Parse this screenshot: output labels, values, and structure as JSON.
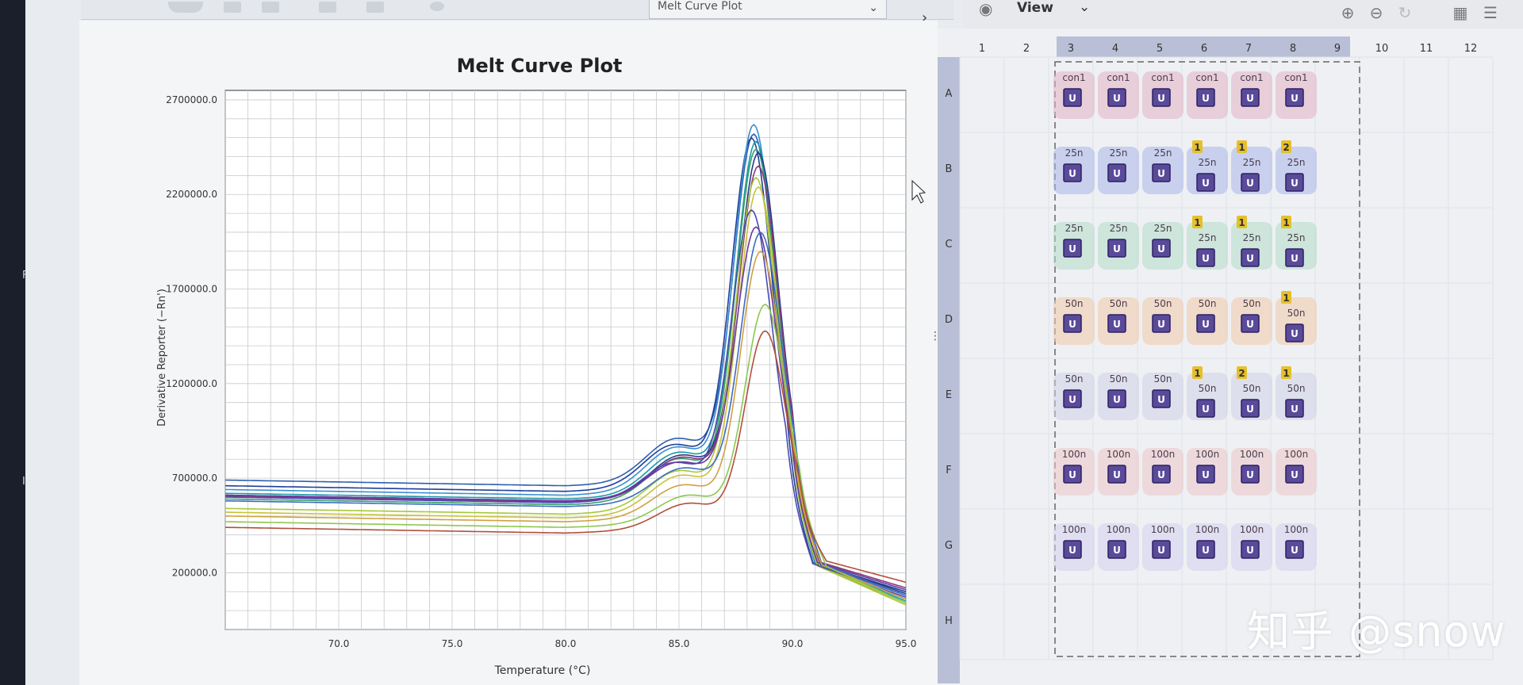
{
  "toolbar": {
    "plot_select_value": "Melt Curve Plot",
    "view_label": "View"
  },
  "chart_data": {
    "type": "line",
    "title": "Melt Curve Plot",
    "xlabel": "Temperature (°C)",
    "ylabel": "Derivative Reporter (−Rn')",
    "xlim": [
      65.0,
      95.0
    ],
    "ylim": [
      -100000,
      2750000
    ],
    "x_ticks": [
      "70.0",
      "75.0",
      "80.0",
      "85.0",
      "90.0",
      "95.0"
    ],
    "y_ticks": [
      "2700000.0",
      "2200000.0",
      "1700000.0",
      "1200000.0",
      "700000.0",
      "200000.0"
    ],
    "grid": true,
    "series": [
      {
        "color": "#2f5fb0",
        "baseline": 690000,
        "peak": 2500000,
        "peak_x": 88.3,
        "end": 80000
      },
      {
        "color": "#1f3f9a",
        "baseline": 660000,
        "peak": 2480000,
        "peak_x": 88.2,
        "end": 100000
      },
      {
        "color": "#3b8fd0",
        "baseline": 640000,
        "peak": 2550000,
        "peak_x": 88.3,
        "end": 60000
      },
      {
        "color": "#1e9aa8",
        "baseline": 620000,
        "peak": 2460000,
        "peak_x": 88.4,
        "end": 50000
      },
      {
        "color": "#36a06a",
        "baseline": 590000,
        "peak": 2420000,
        "peak_x": 88.4,
        "end": 40000
      },
      {
        "color": "#283a8c",
        "baseline": 610000,
        "peak": 2400000,
        "peak_x": 88.5,
        "end": 90000
      },
      {
        "color": "#8a3a7a",
        "baseline": 605000,
        "peak": 2330000,
        "peak_x": 88.5,
        "end": 120000
      },
      {
        "color": "#a6c83a",
        "baseline": 540000,
        "peak": 2270000,
        "peak_x": 88.4,
        "end": 30000
      },
      {
        "color": "#c8c23a",
        "baseline": 520000,
        "peak": 2220000,
        "peak_x": 88.5,
        "end": 40000
      },
      {
        "color": "#4a4ab0",
        "baseline": 600000,
        "peak": 2100000,
        "peak_x": 88.2,
        "end": 70000
      },
      {
        "color": "#6a3aa0",
        "baseline": 610000,
        "peak": 2010000,
        "peak_x": 88.4,
        "end": 110000
      },
      {
        "color": "#3c6cc0",
        "baseline": 580000,
        "peak": 1980000,
        "peak_x": 88.6,
        "end": 80000
      },
      {
        "color": "#d0a040",
        "baseline": 500000,
        "peak": 1880000,
        "peak_x": 88.6,
        "end": 60000
      },
      {
        "color": "#8cc850",
        "baseline": 470000,
        "peak": 1600000,
        "peak_x": 88.8,
        "end": 40000
      },
      {
        "color": "#b0503a",
        "baseline": 440000,
        "peak": 1460000,
        "peak_x": 88.8,
        "end": 150000
      }
    ]
  },
  "plate": {
    "columns": [
      "1",
      "2",
      "3",
      "4",
      "5",
      "6",
      "7",
      "8",
      "9",
      "10",
      "11",
      "12"
    ],
    "rows": [
      "A",
      "B",
      "C",
      "D",
      "E",
      "F",
      "G",
      "H"
    ],
    "wells": [
      {
        "row": 0,
        "col": 2,
        "label": "con1",
        "tint": "#e3b2c2",
        "flag": ""
      },
      {
        "row": 0,
        "col": 3,
        "label": "con1",
        "tint": "#e3b2c2",
        "flag": ""
      },
      {
        "row": 0,
        "col": 4,
        "label": "con1",
        "tint": "#e3b2c2",
        "flag": ""
      },
      {
        "row": 0,
        "col": 5,
        "label": "con1",
        "tint": "#e3b2c2",
        "flag": ""
      },
      {
        "row": 0,
        "col": 6,
        "label": "con1",
        "tint": "#e3b2c2",
        "flag": ""
      },
      {
        "row": 0,
        "col": 7,
        "label": "con1",
        "tint": "#e3b2c2",
        "flag": ""
      },
      {
        "row": 1,
        "col": 2,
        "label": "25n",
        "tint": "#a9b6ea",
        "flag": ""
      },
      {
        "row": 1,
        "col": 3,
        "label": "25n",
        "tint": "#a9b6ea",
        "flag": ""
      },
      {
        "row": 1,
        "col": 4,
        "label": "25n",
        "tint": "#a9b6ea",
        "flag": ""
      },
      {
        "row": 1,
        "col": 5,
        "label": "25n",
        "tint": "#a9b6ea",
        "flag": "1"
      },
      {
        "row": 1,
        "col": 6,
        "label": "25n",
        "tint": "#a9b6ea",
        "flag": "1"
      },
      {
        "row": 1,
        "col": 7,
        "label": "25n",
        "tint": "#a9b6ea",
        "flag": "2"
      },
      {
        "row": 2,
        "col": 2,
        "label": "25n",
        "tint": "#b2ddc6",
        "flag": ""
      },
      {
        "row": 2,
        "col": 3,
        "label": "25n",
        "tint": "#b2ddc6",
        "flag": ""
      },
      {
        "row": 2,
        "col": 4,
        "label": "25n",
        "tint": "#b2ddc6",
        "flag": ""
      },
      {
        "row": 2,
        "col": 5,
        "label": "25n",
        "tint": "#b2ddc6",
        "flag": "1"
      },
      {
        "row": 2,
        "col": 6,
        "label": "25n",
        "tint": "#b2ddc6",
        "flag": "1"
      },
      {
        "row": 2,
        "col": 7,
        "label": "25n",
        "tint": "#b2ddc6",
        "flag": "1"
      },
      {
        "row": 3,
        "col": 2,
        "label": "50n",
        "tint": "#f2c9a8",
        "flag": ""
      },
      {
        "row": 3,
        "col": 3,
        "label": "50n",
        "tint": "#f2c9a8",
        "flag": ""
      },
      {
        "row": 3,
        "col": 4,
        "label": "50n",
        "tint": "#f2c9a8",
        "flag": ""
      },
      {
        "row": 3,
        "col": 5,
        "label": "50n",
        "tint": "#f2c9a8",
        "flag": ""
      },
      {
        "row": 3,
        "col": 6,
        "label": "50n",
        "tint": "#f2c9a8",
        "flag": ""
      },
      {
        "row": 3,
        "col": 7,
        "label": "50n",
        "tint": "#f2c9a8",
        "flag": "1"
      },
      {
        "row": 4,
        "col": 2,
        "label": "50n",
        "tint": "#cfd2e6",
        "flag": ""
      },
      {
        "row": 4,
        "col": 3,
        "label": "50n",
        "tint": "#cfd2e6",
        "flag": ""
      },
      {
        "row": 4,
        "col": 4,
        "label": "50n",
        "tint": "#cfd2e6",
        "flag": ""
      },
      {
        "row": 4,
        "col": 5,
        "label": "50n",
        "tint": "#cfd2e6",
        "flag": "1"
      },
      {
        "row": 4,
        "col": 6,
        "label": "50n",
        "tint": "#cfd2e6",
        "flag": "2"
      },
      {
        "row": 4,
        "col": 7,
        "label": "50n",
        "tint": "#cfd2e6",
        "flag": "1"
      },
      {
        "row": 5,
        "col": 2,
        "label": "100n",
        "tint": "#ecc7c9",
        "flag": ""
      },
      {
        "row": 5,
        "col": 3,
        "label": "100n",
        "tint": "#ecc7c9",
        "flag": ""
      },
      {
        "row": 5,
        "col": 4,
        "label": "100n",
        "tint": "#ecc7c9",
        "flag": ""
      },
      {
        "row": 5,
        "col": 5,
        "label": "100n",
        "tint": "#ecc7c9",
        "flag": ""
      },
      {
        "row": 5,
        "col": 6,
        "label": "100n",
        "tint": "#ecc7c9",
        "flag": ""
      },
      {
        "row": 5,
        "col": 7,
        "label": "100n",
        "tint": "#ecc7c9",
        "flag": ""
      },
      {
        "row": 6,
        "col": 2,
        "label": "100n",
        "tint": "#d6d0ee",
        "flag": ""
      },
      {
        "row": 6,
        "col": 3,
        "label": "100n",
        "tint": "#d6d0ee",
        "flag": ""
      },
      {
        "row": 6,
        "col": 4,
        "label": "100n",
        "tint": "#d6d0ee",
        "flag": ""
      },
      {
        "row": 6,
        "col": 5,
        "label": "100n",
        "tint": "#d6d0ee",
        "flag": ""
      },
      {
        "row": 6,
        "col": 6,
        "label": "100n",
        "tint": "#d6d0ee",
        "flag": ""
      },
      {
        "row": 6,
        "col": 7,
        "label": "100n",
        "tint": "#d6d0ee",
        "flag": ""
      }
    ],
    "task_badge": "U"
  },
  "watermark": "知乎 @snow",
  "colors": {
    "badge_fill": "#5a4a9a",
    "flag_fill": "#e6c02a",
    "selected_header": "#b9bfd6"
  }
}
